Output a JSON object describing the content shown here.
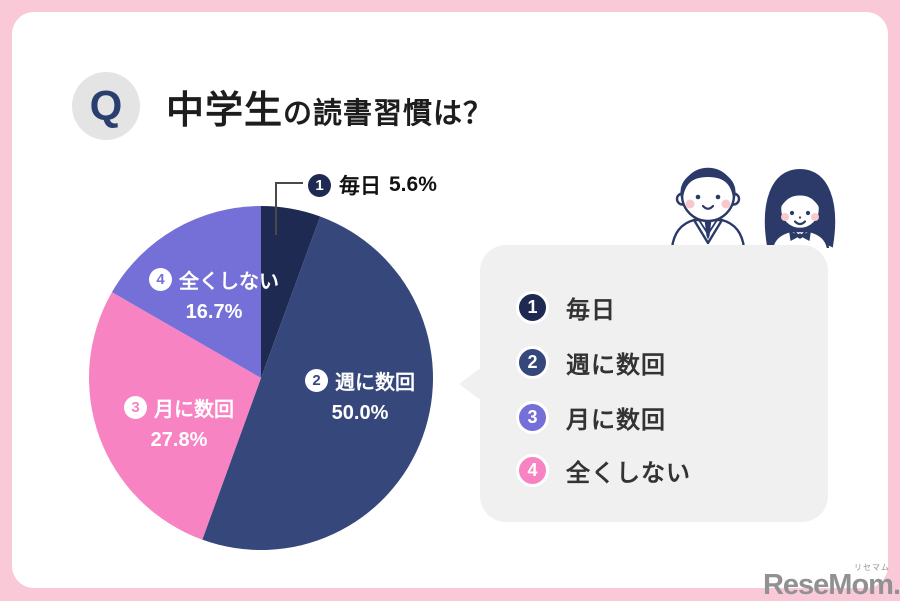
{
  "frame": {
    "border_color": "#f9c9d8",
    "panel_bg": "#ffffff"
  },
  "header": {
    "q_badge": "Q",
    "title_main": "中学生",
    "title_rest": "の読書習慣は？"
  },
  "chart_data": {
    "type": "pie",
    "title": "中学生の読書習慣は？",
    "categories": [
      "毎日",
      "週に数回",
      "月に数回",
      "全くしない"
    ],
    "values": [
      5.6,
      50.0,
      27.8,
      16.7
    ],
    "value_labels": [
      "5.6%",
      "50.0%",
      "27.8%",
      "16.7%"
    ],
    "colors": [
      "#1e2a52",
      "#36477c",
      "#f783c2",
      "#7570d8"
    ],
    "start_angle_deg": -90,
    "direction": "clockwise",
    "legend_position": "right"
  },
  "pie_labels": {
    "callout": {
      "num": "1",
      "label": "毎日",
      "value": "5.6%"
    },
    "slice2": {
      "num": "2",
      "label": "週に数回",
      "value": "50.0%"
    },
    "slice3": {
      "num": "3",
      "label": "月に数回",
      "value": "27.8%"
    },
    "slice4": {
      "num": "4",
      "label": "全くしない",
      "value": "16.7%"
    }
  },
  "legend": {
    "items": [
      {
        "num": "1",
        "label": "毎日",
        "color": "#1e2a52"
      },
      {
        "num": "2",
        "label": "週に数回",
        "color": "#36477c"
      },
      {
        "num": "3",
        "label": "月に数回",
        "color": "#7570d8"
      },
      {
        "num": "4",
        "label": "全くしない",
        "color": "#f783c2"
      }
    ]
  },
  "logo": {
    "text": "ReseMom.",
    "furigana": "リセマム"
  },
  "icons": {
    "boy": "boy-student-icon",
    "girl": "girl-student-icon"
  }
}
